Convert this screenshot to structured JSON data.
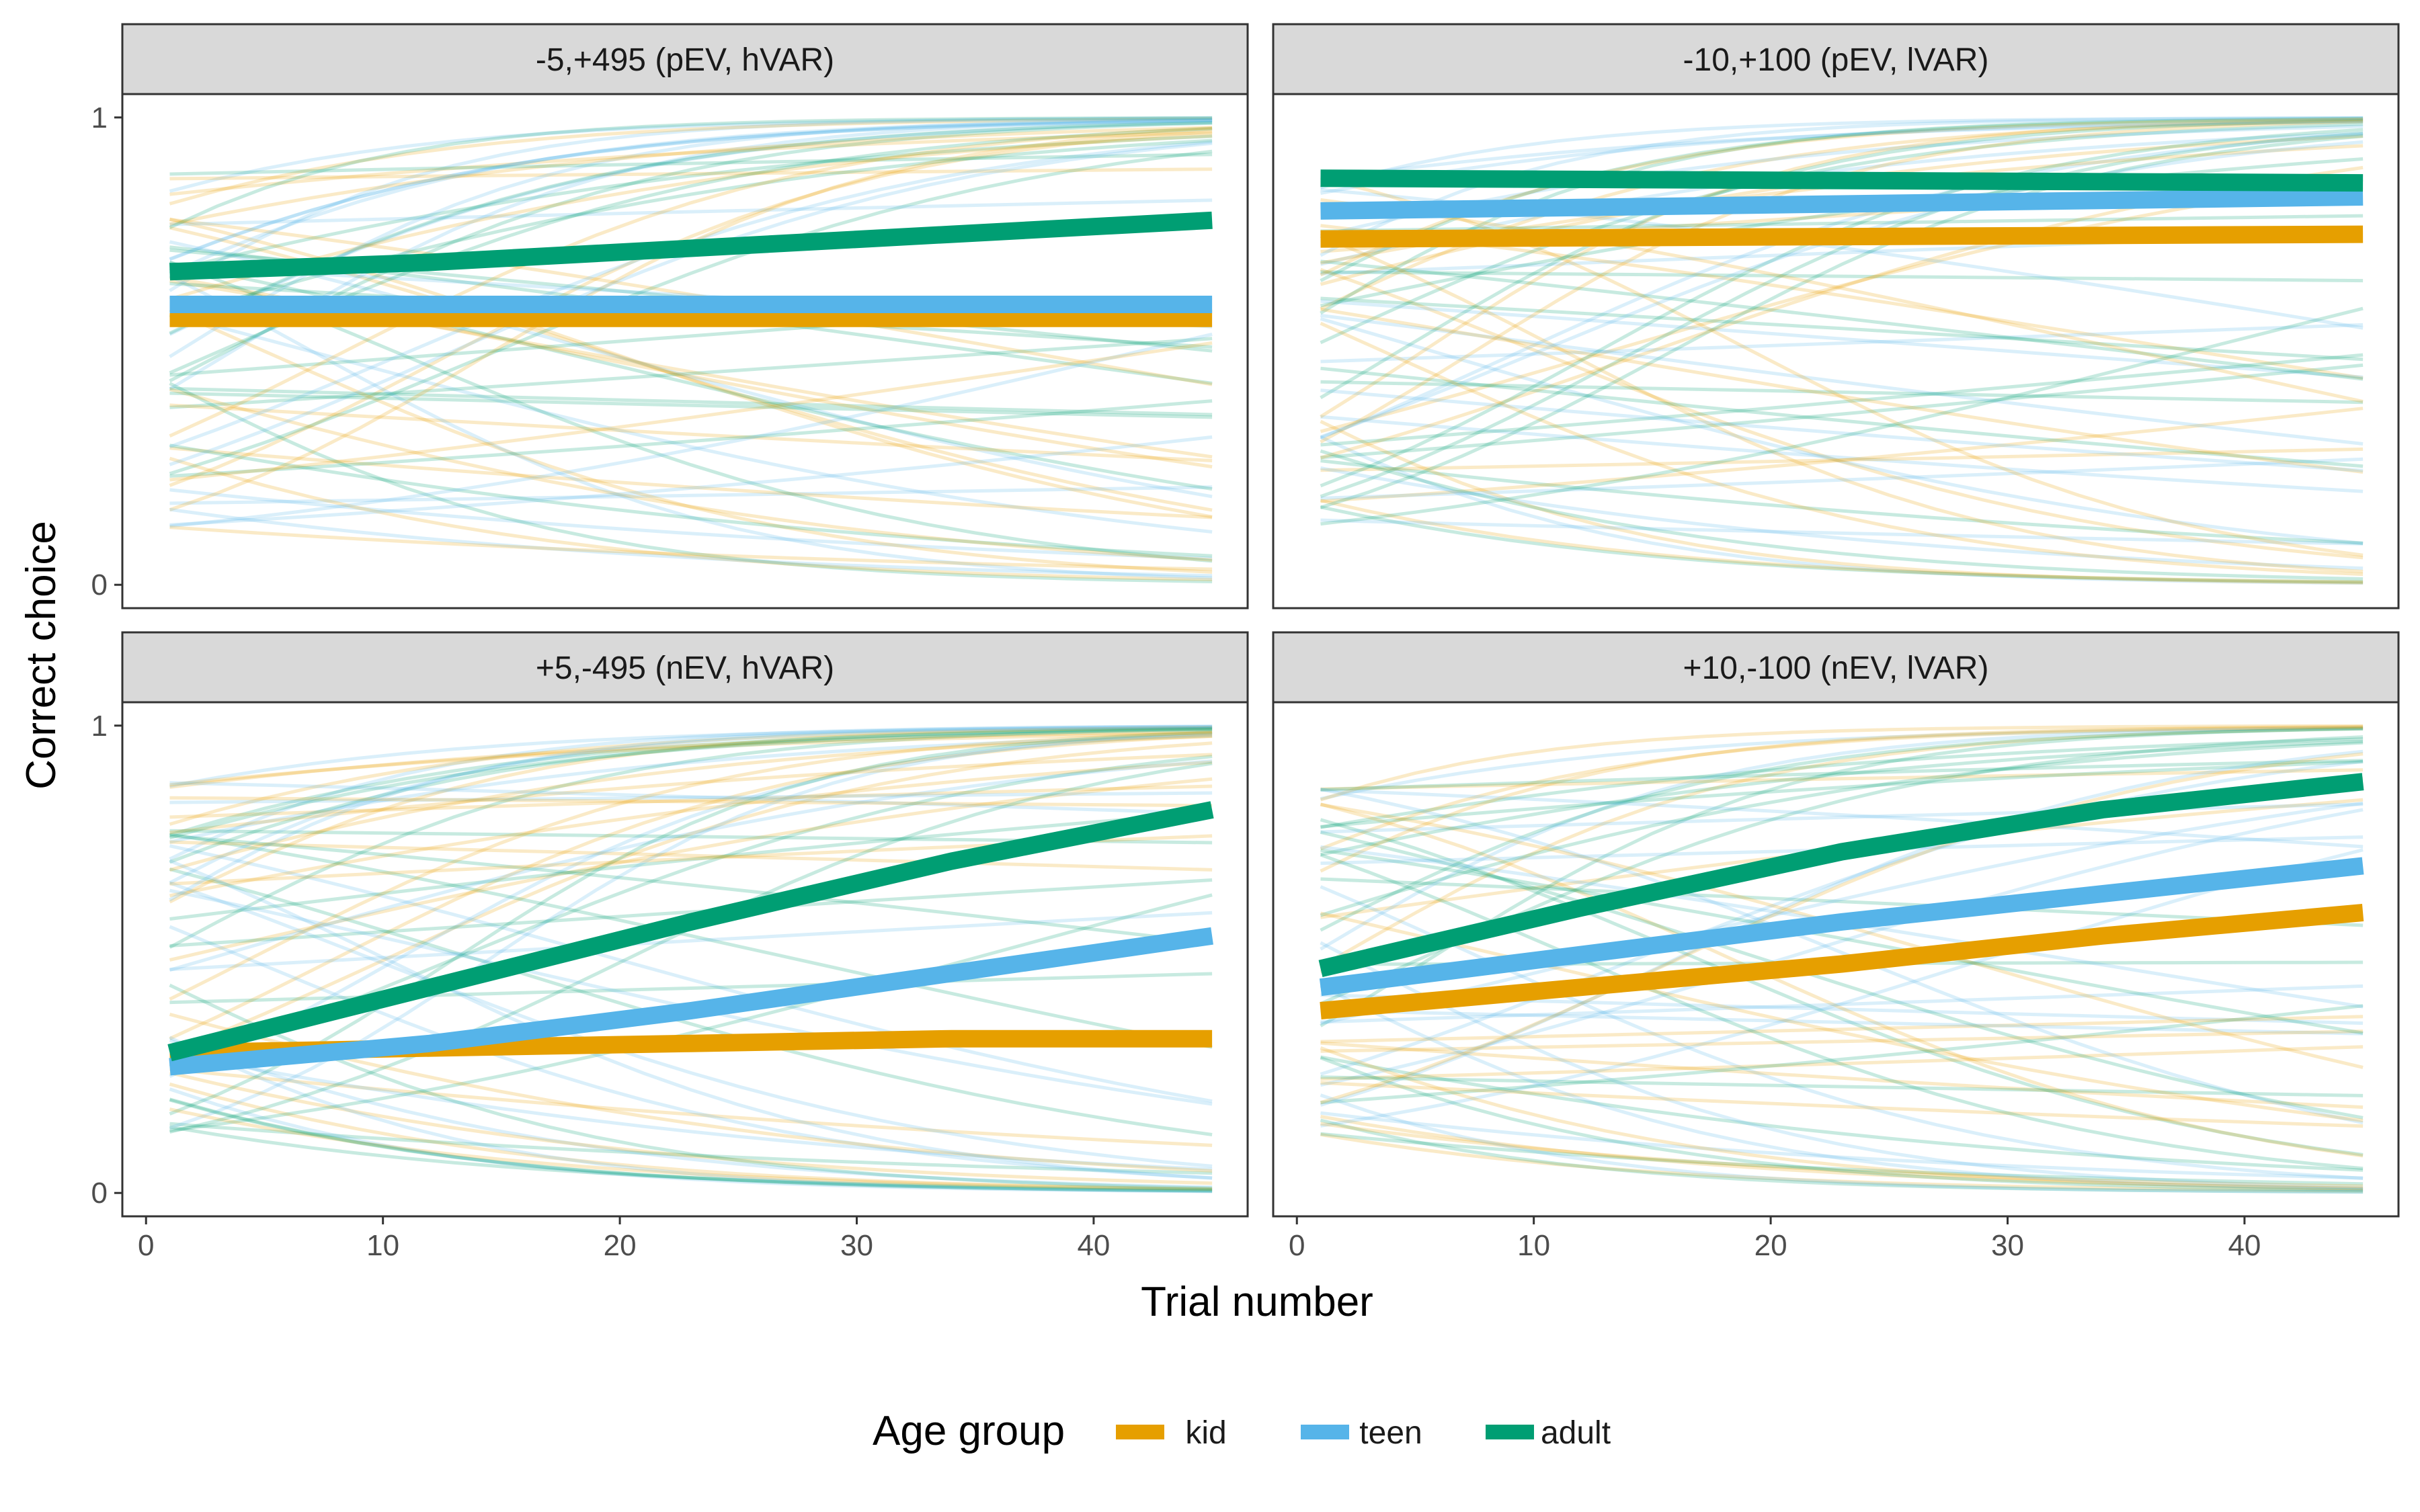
{
  "chart_data": {
    "type": "line",
    "xlabel": "Trial number",
    "ylabel": "Correct choice",
    "xlim": [
      -1,
      46.5
    ],
    "ylim": [
      -0.05,
      1.05
    ],
    "x_ticks": [
      0,
      10,
      20,
      30,
      40
    ],
    "x_tick_labels": [
      "0",
      "10",
      "20",
      "30",
      "40"
    ],
    "y_ticks": [
      0,
      1
    ],
    "y_tick_labels": [
      "0",
      "1"
    ],
    "grid": false,
    "legend": {
      "title": "Age group",
      "placement": "bottom",
      "entries": [
        {
          "label": "kid",
          "color": "#E69F00"
        },
        {
          "label": "teen",
          "color": "#56B4E9"
        },
        {
          "label": "adult",
          "color": "#009E73"
        }
      ]
    },
    "panels": [
      {
        "title": "-5,+495 (pEV, hVAR)",
        "series": [
          {
            "name": "kid",
            "x": [
              1,
              45
            ],
            "y": [
              0.57,
              0.57
            ]
          },
          {
            "name": "teen",
            "x": [
              1,
              45
            ],
            "y": [
              0.6,
              0.6
            ]
          },
          {
            "name": "adult",
            "x": [
              1,
              12,
              23,
              34,
              45
            ],
            "y": [
              0.67,
              0.69,
              0.72,
              0.75,
              0.78
            ]
          }
        ]
      },
      {
        "title": "-10,+100 (pEV, lVAR)",
        "series": [
          {
            "name": "kid",
            "x": [
              1,
              45
            ],
            "y": [
              0.74,
              0.75
            ]
          },
          {
            "name": "teen",
            "x": [
              1,
              45
            ],
            "y": [
              0.8,
              0.83
            ]
          },
          {
            "name": "adult",
            "x": [
              1,
              45
            ],
            "y": [
              0.87,
              0.86
            ]
          }
        ]
      },
      {
        "title": "+5,-495 (nEV, hVAR)",
        "series": [
          {
            "name": "kid",
            "x": [
              1,
              12,
              23,
              34,
              45
            ],
            "y": [
              0.3,
              0.31,
              0.32,
              0.33,
              0.33
            ]
          },
          {
            "name": "teen",
            "x": [
              1,
              12,
              23,
              34,
              45
            ],
            "y": [
              0.27,
              0.32,
              0.39,
              0.47,
              0.55
            ]
          },
          {
            "name": "adult",
            "x": [
              1,
              12,
              23,
              34,
              45
            ],
            "y": [
              0.3,
              0.44,
              0.58,
              0.71,
              0.82
            ]
          }
        ]
      },
      {
        "title": "+10,-100 (nEV, lVAR)",
        "series": [
          {
            "name": "kid",
            "x": [
              1,
              12,
              23,
              34,
              45
            ],
            "y": [
              0.39,
              0.44,
              0.49,
              0.55,
              0.6
            ]
          },
          {
            "name": "teen",
            "x": [
              1,
              12,
              23,
              34,
              45
            ],
            "y": [
              0.44,
              0.51,
              0.58,
              0.64,
              0.7
            ]
          },
          {
            "name": "adult",
            "x": [
              1,
              12,
              23,
              34,
              45
            ],
            "y": [
              0.48,
              0.61,
              0.73,
              0.82,
              0.88
            ]
          }
        ]
      }
    ]
  }
}
